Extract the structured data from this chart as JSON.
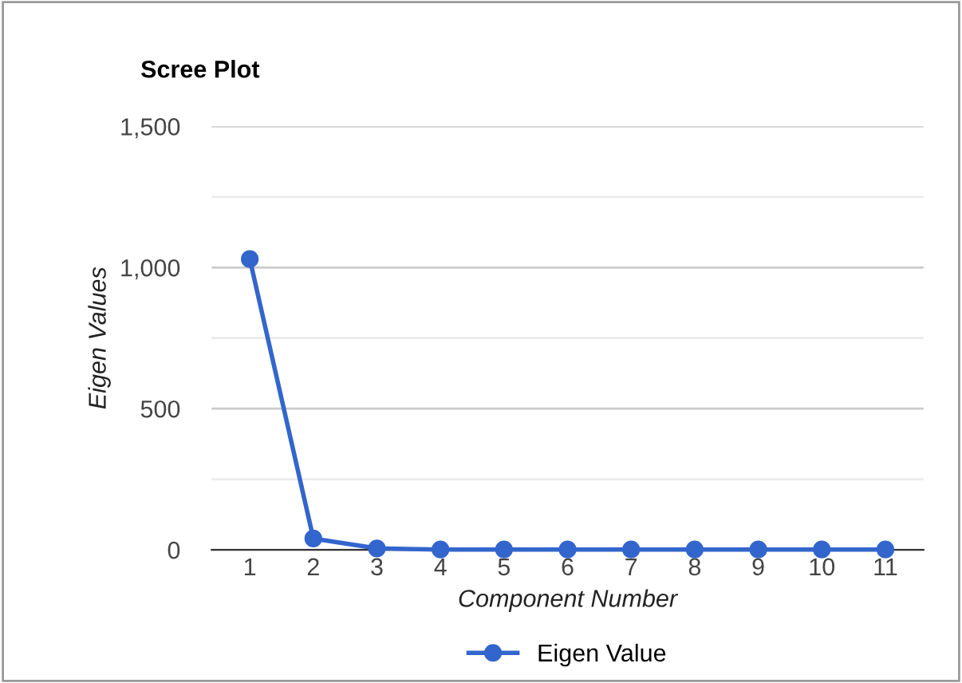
{
  "chart_data": {
    "type": "line",
    "title": "Scree Plot",
    "xlabel": "Component Number",
    "ylabel": "Eigen Values",
    "categories": [
      "1",
      "2",
      "3",
      "4",
      "5",
      "6",
      "7",
      "8",
      "9",
      "10",
      "11"
    ],
    "series": [
      {
        "name": "Eigen Value",
        "color": "#3366cc",
        "values": [
          1030,
          40,
          5,
          1,
          1,
          1,
          1,
          1,
          1,
          1,
          1
        ]
      }
    ],
    "ylim": [
      0,
      1500
    ],
    "yticks": [
      0,
      {
        "value": 250,
        "label": null
      },
      500,
      {
        "value": 750,
        "label": null
      },
      {
        "value": 1000,
        "label": "1,000"
      },
      {
        "value": 1250,
        "label": null
      },
      {
        "value": 1500,
        "label": "1,500"
      }
    ],
    "grid": "y",
    "legend": "bottom",
    "marker": "circle",
    "line_style": "solid"
  }
}
